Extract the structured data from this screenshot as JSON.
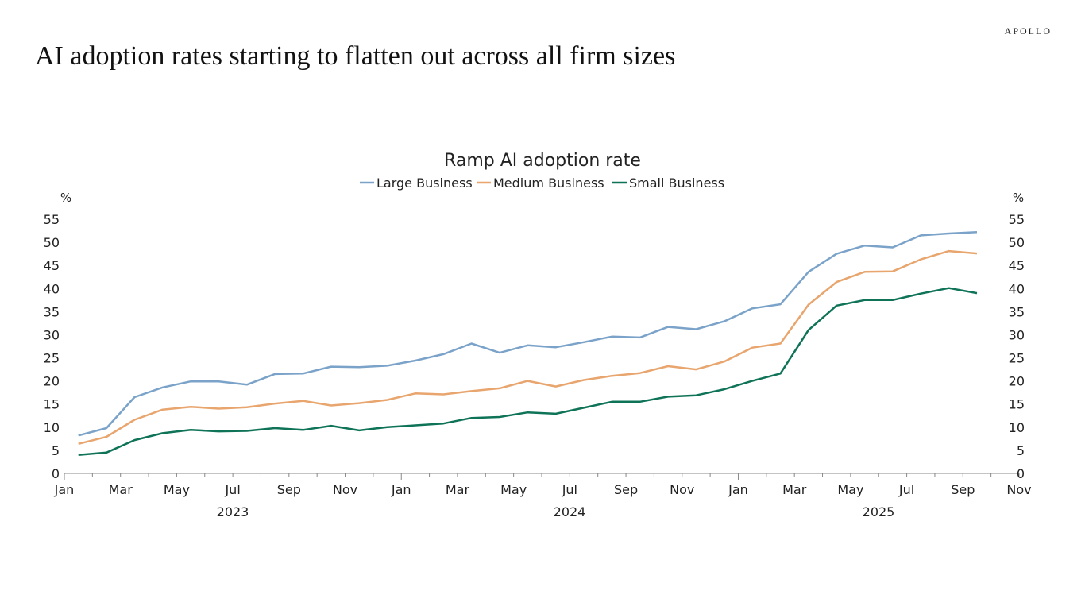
{
  "page": {
    "title": "AI adoption rates starting to flatten out across all firm sizes",
    "logo": "APOLLO"
  },
  "chart_data": {
    "type": "line",
    "title": "Ramp AI adoption rate",
    "ylabel_left": "%",
    "ylabel_right": "%",
    "ylim": [
      0,
      55
    ],
    "yticks": [
      0,
      5,
      10,
      15,
      20,
      25,
      30,
      35,
      40,
      45,
      50,
      55
    ],
    "xlim": [
      "2023-01",
      "2025-11"
    ],
    "xtick_labels": [
      "Jan",
      "Mar",
      "May",
      "Jul",
      "Sep",
      "Nov",
      "Jan",
      "Mar",
      "May",
      "Jul",
      "Sep",
      "Nov",
      "Jan",
      "Mar",
      "May",
      "Jul",
      "Sep",
      "Nov"
    ],
    "year_labels": [
      "2023",
      "2024",
      "2025"
    ],
    "legend_position": "top",
    "grid": false,
    "x": [
      "2023-01",
      "2023-02",
      "2023-03",
      "2023-04",
      "2023-05",
      "2023-06",
      "2023-07",
      "2023-08",
      "2023-09",
      "2023-10",
      "2023-11",
      "2023-12",
      "2024-01",
      "2024-02",
      "2024-03",
      "2024-04",
      "2024-05",
      "2024-06",
      "2024-07",
      "2024-08",
      "2024-09",
      "2024-10",
      "2024-11",
      "2024-12",
      "2025-01",
      "2025-02",
      "2025-03",
      "2025-04",
      "2025-05",
      "2025-06",
      "2025-07",
      "2025-08",
      "2025-09"
    ],
    "series": [
      {
        "name": "Large Business",
        "color": "#7ba3c9",
        "values": [
          8.2,
          9.8,
          16.5,
          18.6,
          19.9,
          19.9,
          19.2,
          21.5,
          21.6,
          23.1,
          23.0,
          23.3,
          24.4,
          25.8,
          28.1,
          26.1,
          27.7,
          27.3,
          28.4,
          29.6,
          29.4,
          31.7,
          31.2,
          32.9,
          35.7,
          36.6,
          43.6,
          47.5,
          49.3,
          48.9,
          51.5,
          51.9,
          52.2
        ]
      },
      {
        "name": "Medium Business",
        "color": "#e8a56e",
        "values": [
          6.4,
          7.9,
          11.6,
          13.8,
          14.4,
          14.0,
          14.3,
          15.1,
          15.7,
          14.7,
          15.2,
          15.9,
          17.3,
          17.1,
          17.8,
          18.4,
          20.0,
          18.8,
          20.2,
          21.1,
          21.7,
          23.2,
          22.5,
          24.2,
          27.2,
          28.1,
          36.5,
          41.4,
          43.6,
          43.7,
          46.3,
          48.1,
          47.6
        ]
      },
      {
        "name": "Small Business",
        "color": "#0f7358",
        "values": [
          4.0,
          4.5,
          7.2,
          8.7,
          9.4,
          9.1,
          9.2,
          9.8,
          9.4,
          10.3,
          9.3,
          10.0,
          10.4,
          10.8,
          12.0,
          12.2,
          13.2,
          12.9,
          14.2,
          15.5,
          15.5,
          16.6,
          16.9,
          18.2,
          20.0,
          21.6,
          31.0,
          36.3,
          37.5,
          37.5,
          38.9,
          40.1,
          39.0
        ]
      }
    ]
  }
}
